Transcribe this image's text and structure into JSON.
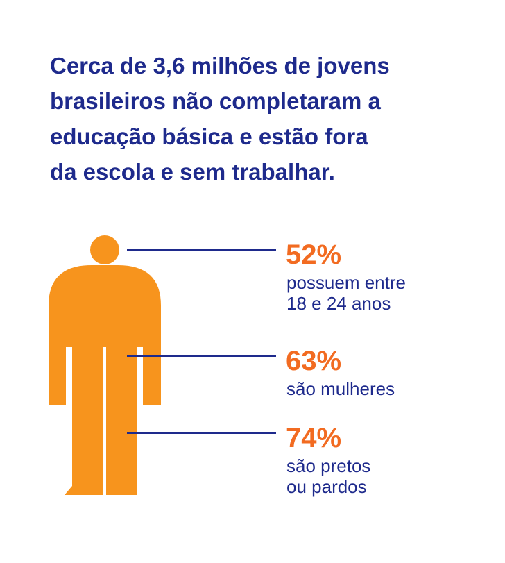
{
  "title": [
    "Cerca de 3,6 milhões de jovens",
    "brasileiros não completaram a",
    "educação básica e estão fora",
    "da escola e sem trabalhar."
  ],
  "stats": [
    {
      "value": "52%",
      "description": [
        "possuem entre",
        "18 e 24 anos"
      ]
    },
    {
      "value": "63%",
      "description": [
        "são mulheres"
      ]
    },
    {
      "value": "74%",
      "description": [
        "são pretos",
        "ou pardos"
      ]
    }
  ]
}
